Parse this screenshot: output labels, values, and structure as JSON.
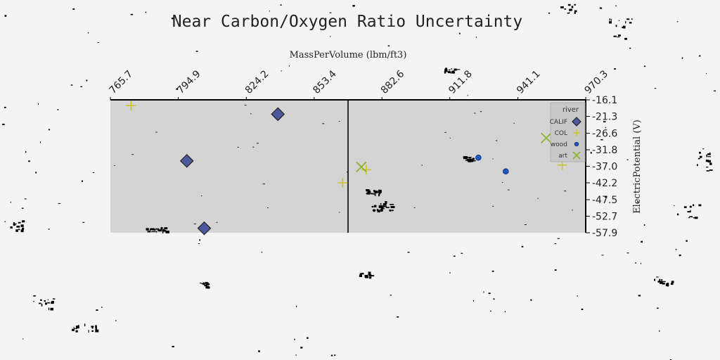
{
  "chart_data": {
    "type": "scatter",
    "title": "Near Carbon/Oxygen Ratio Uncertainty",
    "xlabel": "MassPerVolume (lbm/ft3)",
    "ylabel": "ElectricPotential (V)",
    "x_ticks": [
      "765.7",
      "794.9",
      "824.2",
      "853.4",
      "882.6",
      "911.8",
      "941.1",
      "970.3"
    ],
    "y_ticks": [
      "-16.1",
      "-21.3",
      "-26.6",
      "-31.8",
      "-37.0",
      "-42.2",
      "-47.5",
      "-52.7",
      "-57.9"
    ],
    "xlim": [
      765.7,
      970.3
    ],
    "ylim": [
      -57.9,
      -16.1
    ],
    "x_axis_position": "top",
    "y_axis_position": "right",
    "vline_x": 868.0,
    "legend": {
      "title": "river",
      "position": "top-right"
    },
    "series": [
      {
        "name": "CALIF",
        "marker": "diamond",
        "color": "#4a5a9c",
        "points": [
          [
            837.8,
            -20.6
          ],
          [
            798.6,
            -35.3
          ],
          [
            806.1,
            -56.5
          ]
        ]
      },
      {
        "name": "COL",
        "marker": "plus",
        "color": "#cfc227",
        "points": [
          [
            774.6,
            -17.9
          ],
          [
            865.7,
            -42.2
          ],
          [
            875.8,
            -38.1
          ],
          [
            960.2,
            -36.6
          ]
        ]
      },
      {
        "name": "wood",
        "marker": "circle",
        "color": "#1e56c4",
        "points": [
          [
            924.1,
            -34.3
          ],
          [
            935.9,
            -38.6
          ]
        ]
      },
      {
        "name": "art",
        "marker": "x",
        "color": "#8ab42c",
        "points": [
          [
            953.3,
            -28.1
          ],
          [
            873.7,
            -37.2
          ]
        ]
      }
    ]
  }
}
